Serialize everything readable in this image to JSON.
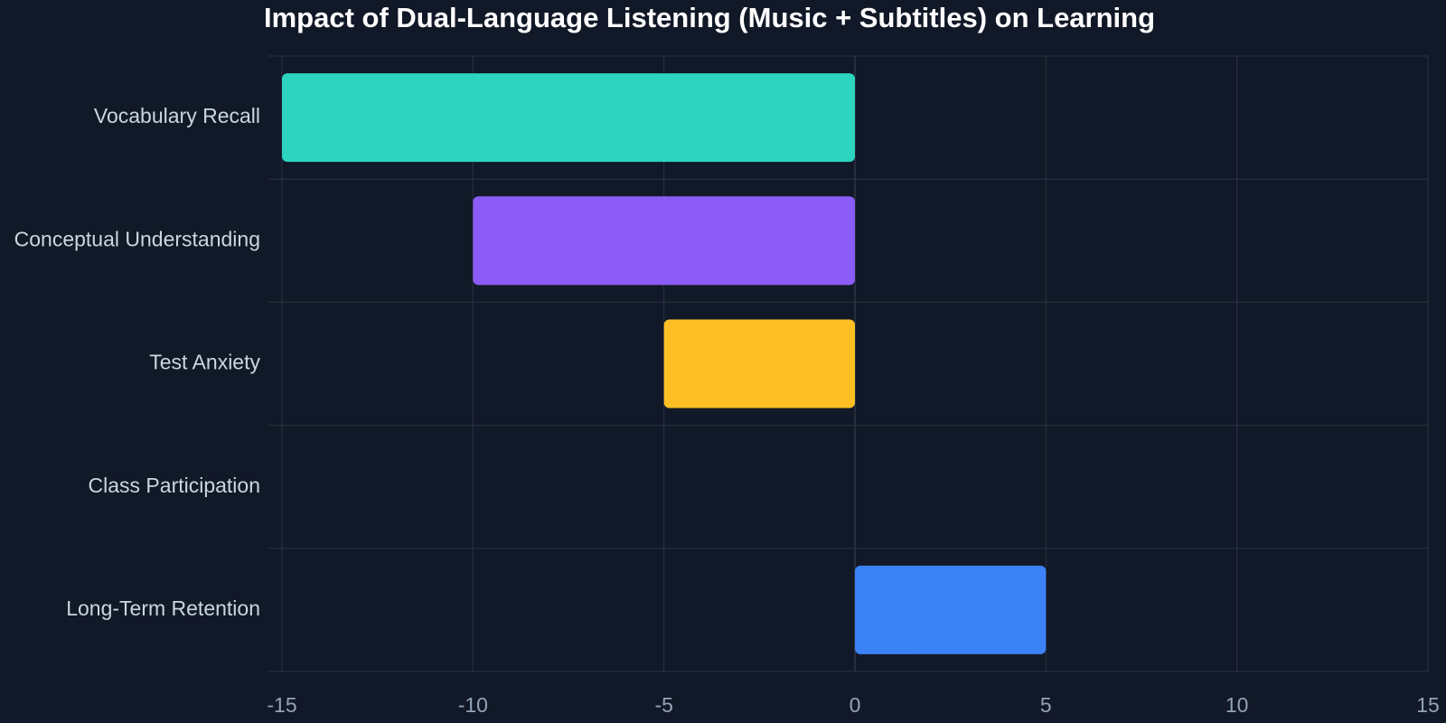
{
  "chart_data": {
    "type": "bar",
    "orientation": "horizontal",
    "title": "Impact of Dual-Language Listening (Music + Subtitles) on Learning",
    "xlabel": "",
    "ylabel": "",
    "categories": [
      "Vocabulary Recall",
      "Conceptual Understanding",
      "Test Anxiety",
      "Class Participation",
      "Long-Term Retention"
    ],
    "values": [
      -15,
      -10,
      -5,
      0,
      5
    ],
    "colors": [
      "#2dd4bf",
      "#8b5cf6",
      "#fbbf24",
      "#6b7280",
      "#3b82f6"
    ],
    "xlim": [
      -15,
      15
    ],
    "xticks": [
      -15,
      -10,
      -5,
      0,
      5,
      10,
      15
    ],
    "xtick_labels": [
      "-15",
      "-10",
      "-5",
      "0",
      "5",
      "10",
      "15"
    ],
    "grid": true,
    "legend": false
  },
  "theme": {
    "background": "#111827",
    "grid_color": "#2b3445",
    "zero_line_color": "#3b4456"
  }
}
